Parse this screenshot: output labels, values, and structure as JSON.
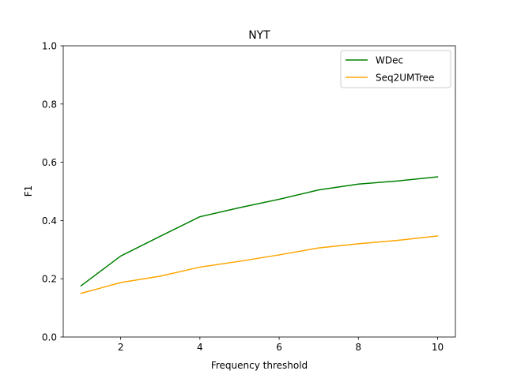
{
  "chart_data": {
    "type": "line",
    "title": "NYT",
    "xlabel": "Frequency threshold",
    "ylabel": "F1",
    "xlim": [
      0.55,
      10.45
    ],
    "ylim": [
      0.0,
      1.0
    ],
    "xticks": [
      2,
      4,
      6,
      8,
      10
    ],
    "yticks": [
      0.0,
      0.2,
      0.4,
      0.6,
      0.8,
      1.0
    ],
    "xtick_labels": [
      "2",
      "4",
      "6",
      "8",
      "10"
    ],
    "ytick_labels": [
      "0.0",
      "0.2",
      "0.4",
      "0.6",
      "0.8",
      "1.0"
    ],
    "grid": false,
    "legend_position": "top-right",
    "x": [
      1,
      2,
      3,
      4,
      5,
      6,
      7,
      8,
      9,
      10
    ],
    "series": [
      {
        "name": "WDec",
        "color": "#008000",
        "values": [
          0.176,
          0.278,
          0.346,
          0.413,
          0.444,
          0.473,
          0.505,
          0.525,
          0.536,
          0.55
        ]
      },
      {
        "name": "Seq2UMTree",
        "color": "#FFA500",
        "values": [
          0.15,
          0.187,
          0.209,
          0.24,
          0.26,
          0.282,
          0.306,
          0.32,
          0.332,
          0.347
        ]
      }
    ]
  }
}
